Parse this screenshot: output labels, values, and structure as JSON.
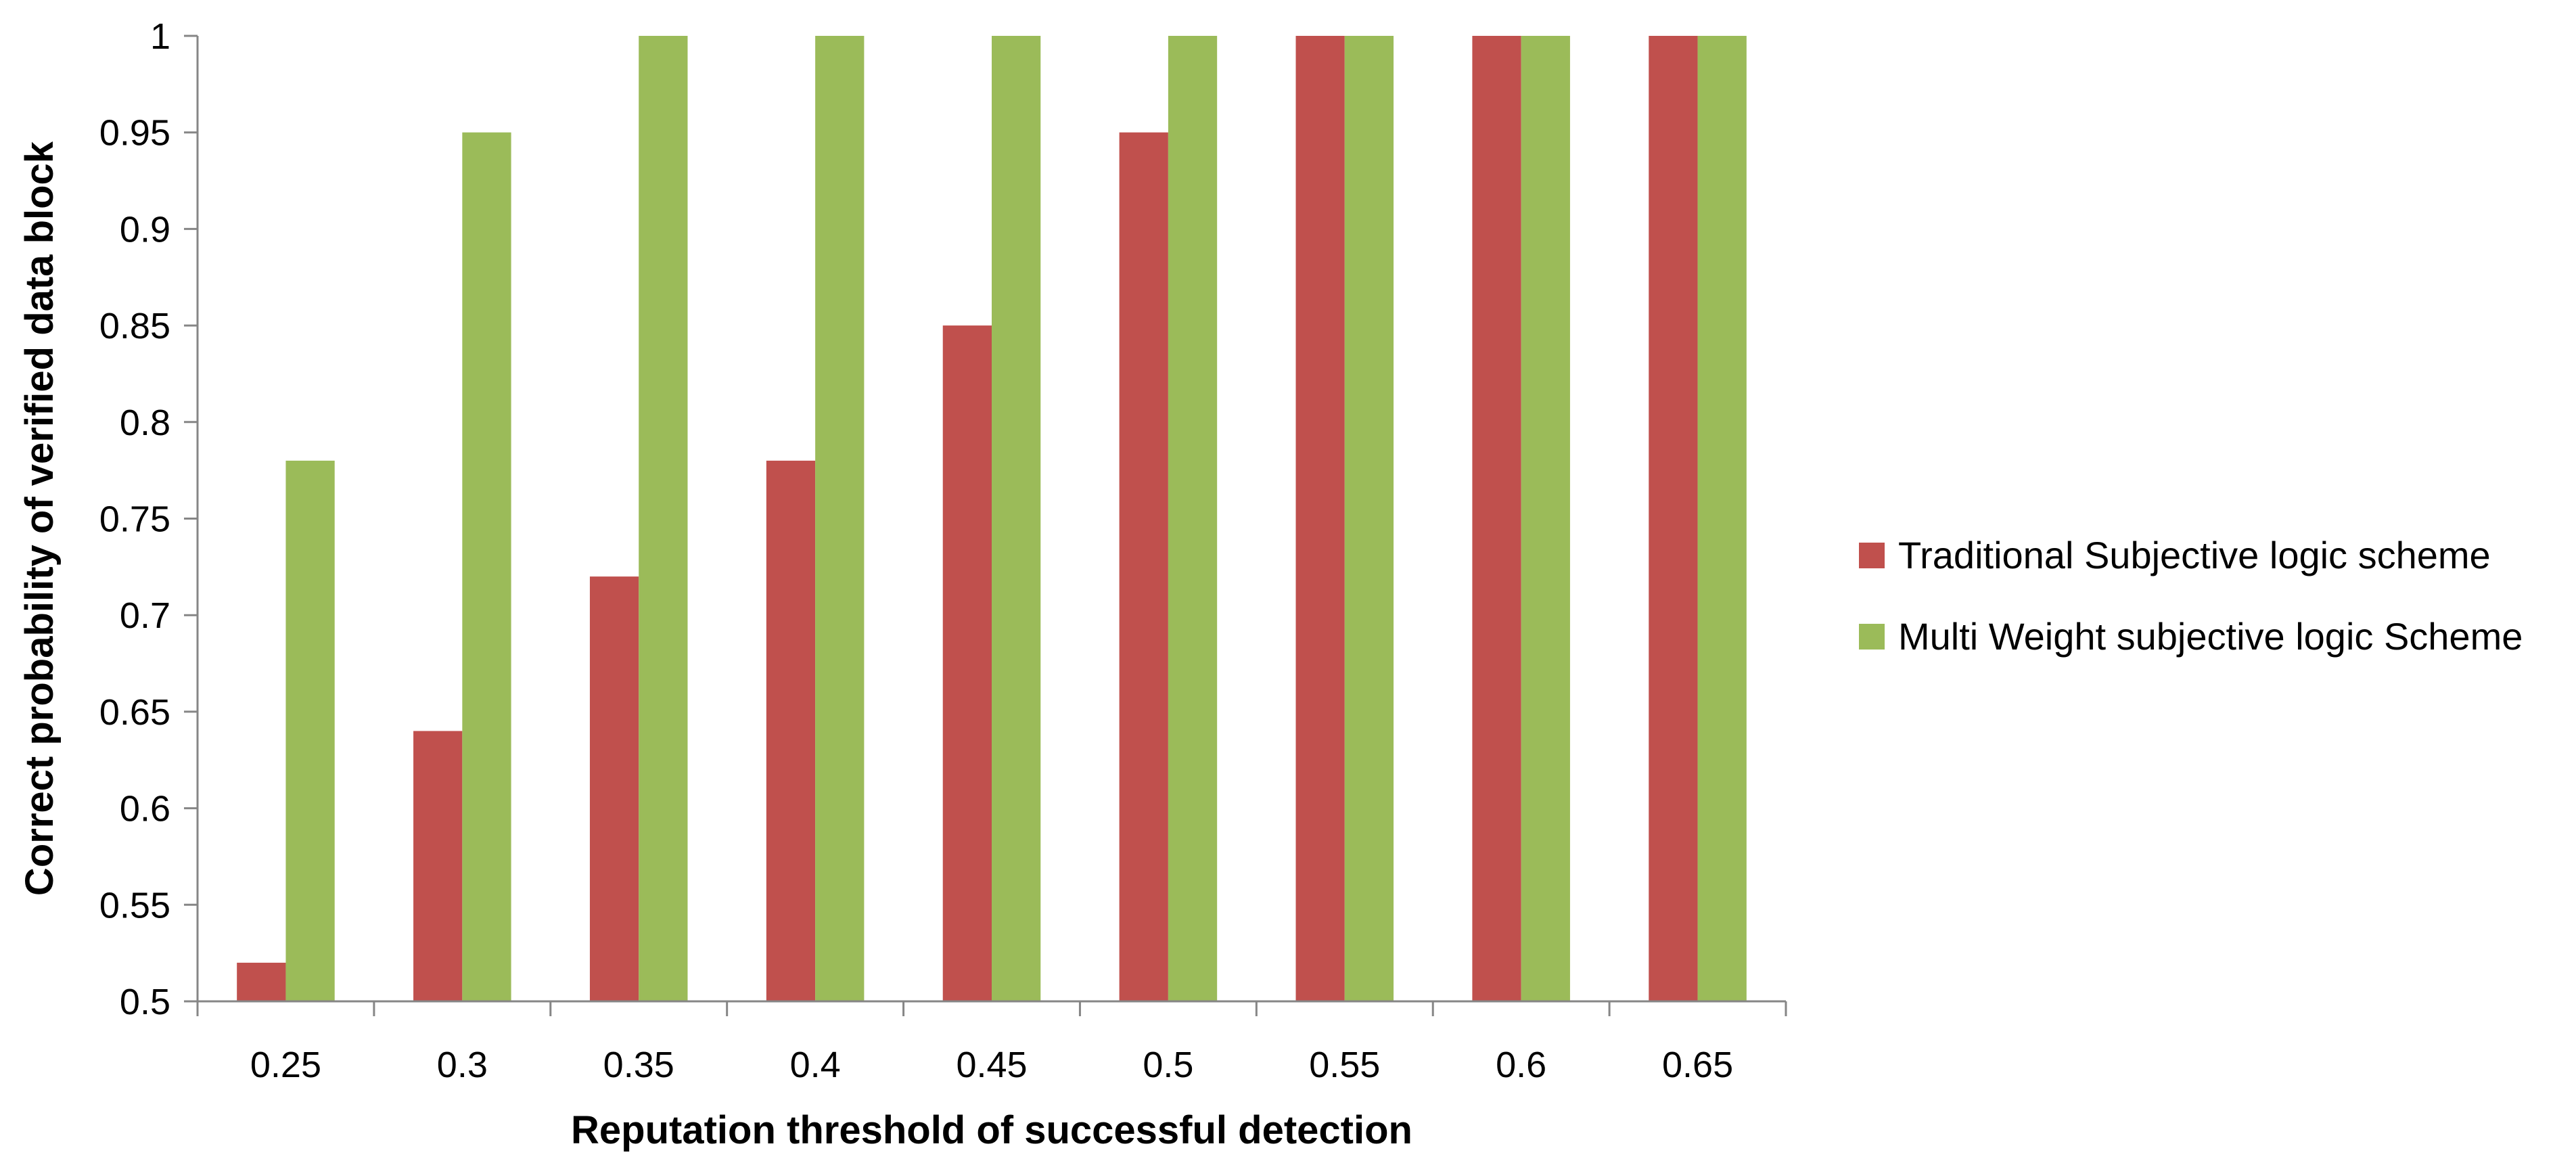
{
  "chart_data": {
    "type": "bar",
    "title": "",
    "xlabel": "Reputation threshold of successful detection",
    "ylabel": "Correct probability of verified data block",
    "categories": [
      "0.25",
      "0.3",
      "0.35",
      "0.4",
      "0.45",
      "0.5",
      "0.55",
      "0.6",
      "0.65"
    ],
    "series": [
      {
        "name": "Traditional Subjective logic scheme",
        "color": "#c0504d",
        "values": [
          0.52,
          0.64,
          0.72,
          0.78,
          0.85,
          0.95,
          1.0,
          1.0,
          1.0
        ]
      },
      {
        "name": "Multi Weight subjective logic Scheme",
        "color": "#9bbb59",
        "values": [
          0.78,
          0.95,
          1.0,
          1.0,
          1.0,
          1.0,
          1.0,
          1.0,
          1.0
        ]
      }
    ],
    "ylim": [
      0.5,
      1.0
    ],
    "yticks": [
      "0.5",
      "0.55",
      "0.6",
      "0.65",
      "0.7",
      "0.75",
      "0.8",
      "0.85",
      "0.9",
      "0.95",
      "1"
    ],
    "grid": false,
    "legend": "right"
  }
}
